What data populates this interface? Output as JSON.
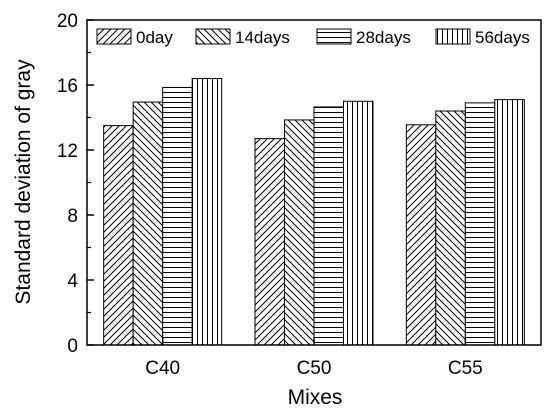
{
  "chart_data": {
    "type": "bar",
    "title": "",
    "xlabel": "Mixes",
    "ylabel": "Standard deviation of gray",
    "categories": [
      "C40",
      "C50",
      "C55"
    ],
    "ylim": [
      0,
      20
    ],
    "yticks": [
      "0",
      "4",
      "8",
      "12",
      "16",
      "20"
    ],
    "grid": false,
    "legend_position": "top",
    "series": [
      {
        "name": "0day",
        "values": [
          13.5,
          12.7,
          13.55
        ],
        "pattern": "diagonal-forward"
      },
      {
        "name": "14days",
        "values": [
          14.95,
          13.85,
          14.4
        ],
        "pattern": "diagonal-back"
      },
      {
        "name": "28days",
        "values": [
          15.85,
          14.65,
          14.9
        ],
        "pattern": "horizontal"
      },
      {
        "name": "56days",
        "values": [
          16.4,
          15.0,
          15.1
        ],
        "pattern": "vertical"
      }
    ]
  }
}
